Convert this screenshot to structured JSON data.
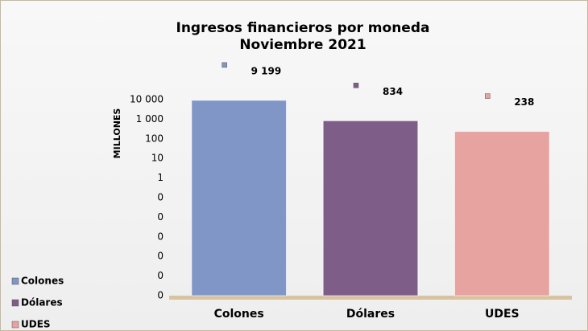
{
  "chart_data": {
    "type": "bar",
    "title": [
      "Ingresos financieros por moneda",
      "Noviembre 2021"
    ],
    "y_label": "MILLONES",
    "categories": [
      "Colones",
      "Dólares",
      "UDES"
    ],
    "values": [
      9199,
      834,
      238
    ],
    "value_labels": [
      "9 199",
      "834",
      "238"
    ],
    "colors": [
      "#8096c6",
      "#7e5e88",
      "#e6a3a0"
    ],
    "log_scale": true,
    "ylim": [
      1e-06,
      10000
    ],
    "yticks": [
      {
        "value": 10000,
        "label": "10 000"
      },
      {
        "value": 1000,
        "label": "1 000"
      },
      100,
      10,
      1,
      {
        "value": 0.1,
        "label": "0"
      },
      {
        "value": 0.01,
        "label": "0"
      },
      {
        "value": 0.001,
        "label": "0"
      },
      {
        "value": 0.0001,
        "label": "0"
      },
      {
        "value": 1e-05,
        "label": "0"
      },
      {
        "value": 1e-06,
        "label": "0"
      }
    ],
    "grid": false,
    "legend": "bottom-left"
  }
}
